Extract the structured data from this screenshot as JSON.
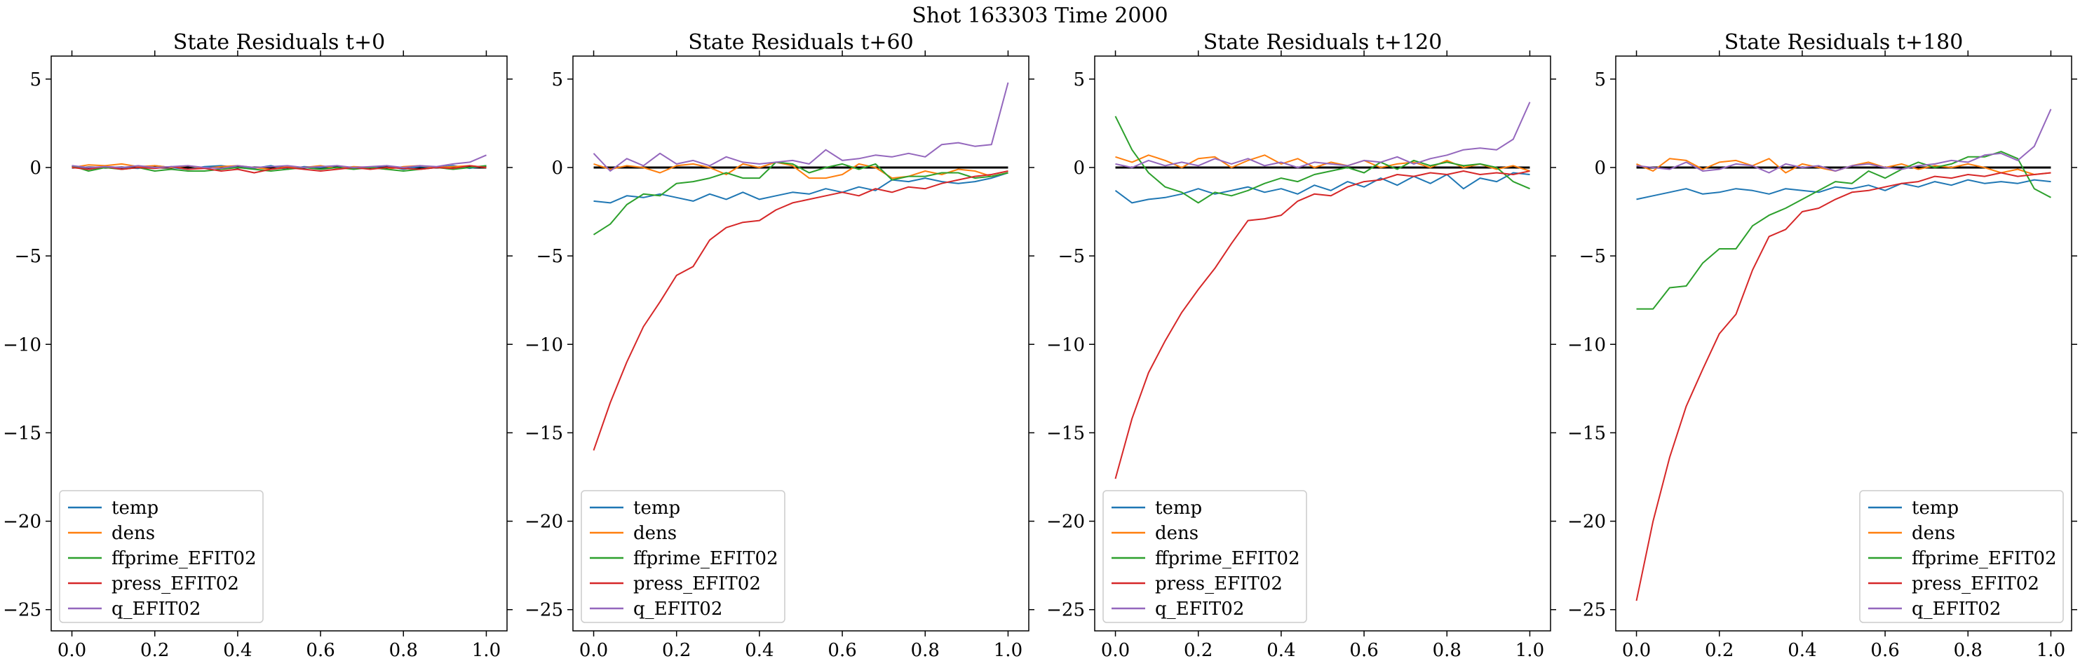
{
  "suptitle": "Shot 163303   Time 2000",
  "colors": {
    "temp": "#1f77b4",
    "dens": "#ff7f0e",
    "ffprime_EFIT02": "#2ca02c",
    "press_EFIT02": "#d62728",
    "q_EFIT02": "#9467bd",
    "zero_line": "#000000"
  },
  "chart_data": [
    {
      "type": "line",
      "title": "State Residuals t+0",
      "xlim": [
        -0.05,
        1.05
      ],
      "ylim": [
        -26.2,
        6.3
      ],
      "xticks": [
        0.0,
        0.2,
        0.4,
        0.6,
        0.8,
        1.0
      ],
      "xtick_labels": [
        "0.0",
        "0.2",
        "0.4",
        "0.6",
        "0.8",
        "1.0"
      ],
      "yticks": [
        5,
        0,
        -5,
        -10,
        -15,
        -20,
        -25
      ],
      "ytick_labels": [
        "5",
        "0",
        "−5",
        "−10",
        "−15",
        "−20",
        "−25"
      ],
      "legend_loc": "lower-left",
      "x": [
        0.0,
        0.04,
        0.08,
        0.12,
        0.16,
        0.2,
        0.24,
        0.28,
        0.32,
        0.36,
        0.4,
        0.44,
        0.48,
        0.52,
        0.56,
        0.6,
        0.64,
        0.68,
        0.72,
        0.76,
        0.8,
        0.84,
        0.88,
        0.92,
        0.96,
        1.0
      ],
      "series": [
        {
          "name": "temp",
          "values": [
            0.1,
            -0.1,
            0.05,
            0.0,
            -0.05,
            0.1,
            0.0,
            -0.1,
            0.05,
            0.1,
            0.0,
            -0.05,
            0.1,
            -0.1,
            0.05,
            0.0,
            0.1,
            -0.05,
            0.0,
            0.1,
            -0.1,
            0.05,
            0.0,
            0.1,
            -0.05,
            0.1
          ]
        },
        {
          "name": "dens",
          "values": [
            0.0,
            0.15,
            0.1,
            0.2,
            0.05,
            0.1,
            0.0,
            0.1,
            -0.05,
            0.05,
            0.1,
            0.0,
            -0.1,
            0.05,
            0.0,
            0.1,
            -0.05,
            0.05,
            0.0,
            -0.1,
            0.05,
            0.1,
            0.0,
            0.05,
            0.1,
            0.0
          ]
        },
        {
          "name": "ffprime_EFIT02",
          "values": [
            0.1,
            -0.2,
            0.0,
            -0.1,
            0.0,
            -0.2,
            -0.1,
            -0.2,
            -0.2,
            -0.1,
            0.0,
            -0.1,
            -0.2,
            -0.1,
            0.0,
            -0.1,
            0.0,
            -0.1,
            0.0,
            -0.1,
            -0.2,
            -0.1,
            0.0,
            -0.1,
            0.0,
            0.1
          ]
        },
        {
          "name": "press_EFIT02",
          "values": [
            0.0,
            -0.1,
            0.05,
            -0.1,
            0.0,
            -0.05,
            0.05,
            -0.1,
            -0.05,
            -0.2,
            -0.1,
            -0.3,
            -0.1,
            0.0,
            -0.1,
            -0.2,
            -0.1,
            0.0,
            -0.1,
            0.0,
            -0.05,
            -0.1,
            0.0,
            -0.05,
            0.1,
            0.0
          ]
        },
        {
          "name": "q_EFIT02",
          "values": [
            0.1,
            0.0,
            0.05,
            0.0,
            0.1,
            0.0,
            0.05,
            0.1,
            0.0,
            -0.05,
            0.1,
            0.0,
            0.05,
            0.1,
            0.0,
            0.05,
            0.1,
            0.0,
            0.05,
            0.1,
            0.0,
            0.1,
            0.05,
            0.2,
            0.3,
            0.7
          ]
        }
      ]
    },
    {
      "type": "line",
      "title": "State Residuals t+60",
      "xlim": [
        -0.05,
        1.05
      ],
      "ylim": [
        -26.2,
        6.3
      ],
      "xticks": [
        0.0,
        0.2,
        0.4,
        0.6,
        0.8,
        1.0
      ],
      "xtick_labels": [
        "0.0",
        "0.2",
        "0.4",
        "0.6",
        "0.8",
        "1.0"
      ],
      "yticks": [
        5,
        0,
        -5,
        -10,
        -15,
        -20,
        -25
      ],
      "ytick_labels": [
        "5",
        "0",
        "−5",
        "−10",
        "−15",
        "−20",
        "−25"
      ],
      "legend_loc": "lower-left",
      "x": [
        0.0,
        0.04,
        0.08,
        0.12,
        0.16,
        0.2,
        0.24,
        0.28,
        0.32,
        0.36,
        0.4,
        0.44,
        0.48,
        0.52,
        0.56,
        0.6,
        0.64,
        0.68,
        0.72,
        0.76,
        0.8,
        0.84,
        0.88,
        0.92,
        0.96,
        1.0
      ],
      "series": [
        {
          "name": "temp",
          "values": [
            -1.9,
            -2.0,
            -1.6,
            -1.7,
            -1.5,
            -1.7,
            -1.9,
            -1.5,
            -1.8,
            -1.4,
            -1.8,
            -1.6,
            -1.4,
            -1.5,
            -1.2,
            -1.4,
            -1.1,
            -1.3,
            -0.7,
            -0.8,
            -0.6,
            -0.8,
            -0.9,
            -0.8,
            -0.6,
            -0.3
          ]
        },
        {
          "name": "dens",
          "values": [
            0.2,
            -0.1,
            0.1,
            0.0,
            -0.3,
            0.1,
            0.2,
            0.0,
            -0.4,
            0.2,
            0.0,
            0.3,
            0.1,
            -0.6,
            -0.6,
            -0.4,
            0.2,
            0.0,
            -0.6,
            -0.5,
            -0.2,
            -0.4,
            -0.1,
            -0.2,
            -0.5,
            -0.3
          ]
        },
        {
          "name": "ffprime_EFIT02",
          "values": [
            -3.8,
            -3.2,
            -2.1,
            -1.5,
            -1.6,
            -0.9,
            -0.8,
            -0.6,
            -0.3,
            -0.6,
            -0.6,
            0.3,
            0.2,
            -0.3,
            0.0,
            0.2,
            -0.1,
            0.2,
            -0.7,
            -0.5,
            -0.5,
            -0.3,
            -0.3,
            -0.6,
            -0.5,
            -0.3
          ]
        },
        {
          "name": "press_EFIT02",
          "values": [
            -16.0,
            -13.3,
            -11.0,
            -9.0,
            -7.6,
            -6.1,
            -5.6,
            -4.1,
            -3.4,
            -3.1,
            -3.0,
            -2.4,
            -2.0,
            -1.8,
            -1.6,
            -1.4,
            -1.6,
            -1.2,
            -1.4,
            -1.1,
            -1.2,
            -0.9,
            -0.7,
            -0.5,
            -0.4,
            -0.2
          ]
        },
        {
          "name": "q_EFIT02",
          "values": [
            0.8,
            -0.2,
            0.5,
            0.1,
            0.8,
            0.2,
            0.4,
            0.1,
            0.6,
            0.3,
            0.2,
            0.3,
            0.4,
            0.2,
            1.0,
            0.4,
            0.5,
            0.7,
            0.6,
            0.8,
            0.6,
            1.3,
            1.4,
            1.2,
            1.3,
            4.8
          ]
        }
      ]
    },
    {
      "type": "line",
      "title": "State Residuals t+120",
      "xlim": [
        -0.05,
        1.05
      ],
      "ylim": [
        -26.2,
        6.3
      ],
      "xticks": [
        0.0,
        0.2,
        0.4,
        0.6,
        0.8,
        1.0
      ],
      "xtick_labels": [
        "0.0",
        "0.2",
        "0.4",
        "0.6",
        "0.8",
        "1.0"
      ],
      "yticks": [
        5,
        0,
        -5,
        -10,
        -15,
        -20,
        -25
      ],
      "ytick_labels": [
        "5",
        "0",
        "−5",
        "−10",
        "−15",
        "−20",
        "−25"
      ],
      "legend_loc": "lower-left",
      "x": [
        0.0,
        0.04,
        0.08,
        0.12,
        0.16,
        0.2,
        0.24,
        0.28,
        0.32,
        0.36,
        0.4,
        0.44,
        0.48,
        0.52,
        0.56,
        0.6,
        0.64,
        0.68,
        0.72,
        0.76,
        0.8,
        0.84,
        0.88,
        0.92,
        0.96,
        1.0
      ],
      "series": [
        {
          "name": "temp",
          "values": [
            -1.3,
            -2.0,
            -1.8,
            -1.7,
            -1.5,
            -1.2,
            -1.5,
            -1.3,
            -1.1,
            -1.4,
            -1.2,
            -1.5,
            -1.0,
            -1.3,
            -0.8,
            -1.1,
            -0.6,
            -1.0,
            -0.5,
            -0.9,
            -0.4,
            -1.2,
            -0.6,
            -0.8,
            -0.3,
            -0.4
          ]
        },
        {
          "name": "dens",
          "values": [
            0.6,
            0.3,
            0.7,
            0.4,
            0.0,
            0.5,
            0.6,
            0.0,
            0.4,
            0.7,
            0.2,
            0.5,
            0.0,
            0.3,
            0.1,
            0.4,
            0.0,
            0.2,
            0.3,
            0.0,
            0.4,
            0.0,
            0.2,
            -0.1,
            0.1,
            -0.2
          ]
        },
        {
          "name": "ffprime_EFIT02",
          "values": [
            2.9,
            1.0,
            -0.3,
            -1.1,
            -1.4,
            -2.0,
            -1.4,
            -1.6,
            -1.3,
            -0.9,
            -0.6,
            -0.8,
            -0.4,
            -0.2,
            0.0,
            -0.3,
            0.3,
            -0.1,
            0.4,
            0.1,
            0.3,
            0.1,
            0.2,
            0.0,
            -0.8,
            -1.2
          ]
        },
        {
          "name": "press_EFIT02",
          "values": [
            -17.6,
            -14.2,
            -11.6,
            -9.8,
            -8.2,
            -6.9,
            -5.7,
            -4.3,
            -3.0,
            -2.9,
            -2.7,
            -1.9,
            -1.5,
            -1.6,
            -1.1,
            -0.8,
            -0.7,
            -0.4,
            -0.5,
            -0.3,
            -0.4,
            -0.2,
            -0.4,
            -0.3,
            -0.4,
            -0.2
          ]
        },
        {
          "name": "q_EFIT02",
          "values": [
            0.2,
            0.0,
            0.4,
            0.1,
            0.3,
            0.1,
            0.5,
            0.2,
            0.5,
            0.1,
            0.3,
            0.0,
            0.3,
            0.2,
            0.1,
            0.4,
            0.3,
            0.6,
            0.2,
            0.5,
            0.7,
            1.0,
            1.1,
            1.0,
            1.6,
            3.7
          ]
        }
      ]
    },
    {
      "type": "line",
      "title": "State Residuals t+180",
      "xlim": [
        -0.05,
        1.05
      ],
      "ylim": [
        -26.2,
        6.3
      ],
      "xticks": [
        0.0,
        0.2,
        0.4,
        0.6,
        0.8,
        1.0
      ],
      "xtick_labels": [
        "0.0",
        "0.2",
        "0.4",
        "0.6",
        "0.8",
        "1.0"
      ],
      "yticks": [
        5,
        0,
        -5,
        -10,
        -15,
        -20,
        -25
      ],
      "ytick_labels": [
        "5",
        "0",
        "−5",
        "−10",
        "−15",
        "−20",
        "−25"
      ],
      "legend_loc": "lower-right",
      "x": [
        0.0,
        0.04,
        0.08,
        0.12,
        0.16,
        0.2,
        0.24,
        0.28,
        0.32,
        0.36,
        0.4,
        0.44,
        0.48,
        0.52,
        0.56,
        0.6,
        0.64,
        0.68,
        0.72,
        0.76,
        0.8,
        0.84,
        0.88,
        0.92,
        0.96,
        1.0
      ],
      "series": [
        {
          "name": "temp",
          "values": [
            -1.8,
            -1.6,
            -1.4,
            -1.2,
            -1.5,
            -1.4,
            -1.2,
            -1.3,
            -1.5,
            -1.2,
            -1.3,
            -1.4,
            -1.1,
            -1.2,
            -1.0,
            -1.3,
            -0.9,
            -1.1,
            -0.8,
            -1.0,
            -0.7,
            -0.9,
            -0.8,
            -0.9,
            -0.7,
            -0.8
          ]
        },
        {
          "name": "dens",
          "values": [
            0.2,
            -0.2,
            0.5,
            0.4,
            -0.1,
            0.3,
            0.4,
            0.1,
            0.5,
            -0.3,
            0.2,
            0.0,
            -0.2,
            0.1,
            0.3,
            0.0,
            0.2,
            -0.1,
            0.1,
            0.0,
            0.2,
            0.0,
            -0.3,
            -0.1,
            -0.4,
            -0.3
          ]
        },
        {
          "name": "ffprime_EFIT02",
          "values": [
            -8.0,
            -8.0,
            -6.8,
            -6.7,
            -5.4,
            -4.6,
            -4.6,
            -3.3,
            -2.7,
            -2.3,
            -1.8,
            -1.3,
            -0.8,
            -0.9,
            -0.2,
            -0.6,
            -0.1,
            0.3,
            0.0,
            0.2,
            0.6,
            0.6,
            0.9,
            0.5,
            -1.2,
            -1.7
          ]
        },
        {
          "name": "press_EFIT02",
          "values": [
            -24.5,
            -20.0,
            -16.4,
            -13.5,
            -11.4,
            -9.4,
            -8.3,
            -5.8,
            -3.9,
            -3.5,
            -2.5,
            -2.3,
            -1.8,
            -1.4,
            -1.3,
            -1.1,
            -0.9,
            -0.8,
            -0.5,
            -0.6,
            -0.4,
            -0.5,
            -0.3,
            -0.5,
            -0.4,
            -0.3
          ]
        },
        {
          "name": "q_EFIT02",
          "values": [
            0.1,
            0.0,
            -0.1,
            0.3,
            -0.2,
            -0.1,
            0.2,
            0.1,
            -0.3,
            0.2,
            0.0,
            0.1,
            -0.2,
            0.1,
            0.2,
            0.0,
            -0.1,
            0.1,
            0.2,
            0.4,
            0.3,
            0.7,
            0.8,
            0.4,
            1.2,
            3.3
          ]
        }
      ]
    }
  ]
}
